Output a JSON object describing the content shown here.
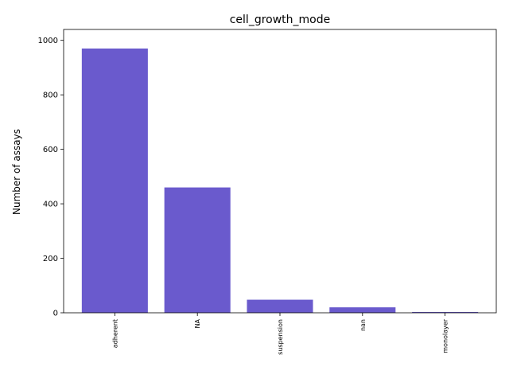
{
  "chart_data": {
    "type": "bar",
    "title": "cell_growth_mode",
    "xlabel": "",
    "ylabel": "Number of assays",
    "categories": [
      "adherent",
      "NA",
      "suspension",
      "nan",
      "monolayer"
    ],
    "values": [
      970,
      460,
      48,
      20,
      3
    ],
    "ylim": [
      0,
      1040
    ],
    "yticks": [
      0,
      200,
      400,
      600,
      800,
      1000
    ],
    "grid": false,
    "legend": "none",
    "bar_color": "#6A5ACD"
  }
}
